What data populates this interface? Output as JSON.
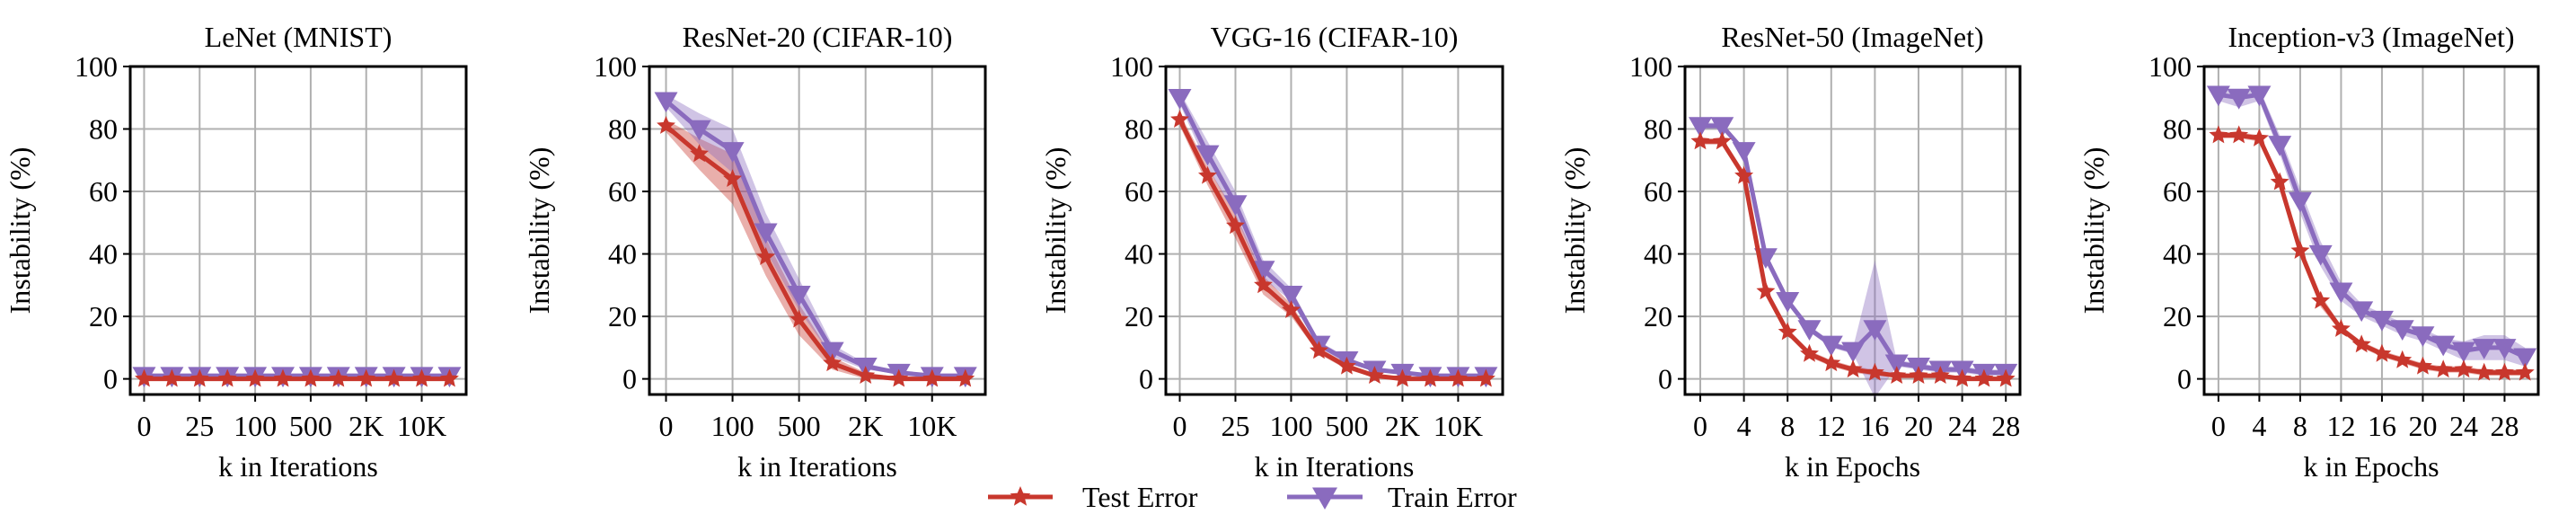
{
  "colors": {
    "test": "#c8372d",
    "train": "#8a6bbe",
    "grid": "#b0b0b0"
  },
  "legend": {
    "position": "bottom-center",
    "items": [
      {
        "label": "Test Error",
        "marker": "star",
        "color": "#c8372d"
      },
      {
        "label": "Train Error",
        "marker": "triangle-down",
        "color": "#8a6bbe"
      }
    ]
  },
  "chart_data": [
    {
      "type": "line",
      "title": "LeNet (MNIST)",
      "xlabel": "k in Iterations",
      "ylabel": "Instability (%)",
      "x_scale": "categorical",
      "xticks": [
        {
          "index": 0,
          "label": "0"
        },
        {
          "index": 2,
          "label": "25"
        },
        {
          "index": 4,
          "label": "100"
        },
        {
          "index": 6,
          "label": "500"
        },
        {
          "index": 8,
          "label": "2K"
        },
        {
          "index": 10,
          "label": "10K"
        }
      ],
      "ylim": [
        -5,
        100
      ],
      "yticks": [
        0,
        20,
        40,
        60,
        80,
        100
      ],
      "grid": true,
      "series": [
        {
          "name": "Test Error",
          "x": [
            0,
            1,
            2,
            3,
            4,
            5,
            6,
            7,
            8,
            9,
            10,
            11
          ],
          "values": [
            0,
            0,
            0,
            0,
            0,
            0,
            0,
            0,
            0,
            0,
            0,
            0
          ],
          "spread": [
            0.5,
            0.5,
            0.5,
            0.5,
            0.5,
            0.5,
            0.5,
            0.5,
            0.5,
            0.5,
            0.5,
            0.5
          ]
        },
        {
          "name": "Train Error",
          "x": [
            0,
            1,
            2,
            3,
            4,
            5,
            6,
            7,
            8,
            9,
            10,
            11
          ],
          "values": [
            1,
            1,
            1,
            1,
            1,
            1,
            1,
            1,
            1,
            1,
            1,
            1
          ],
          "spread": [
            0.5,
            0.5,
            0.5,
            0.5,
            0.5,
            0.5,
            0.5,
            0.5,
            0.5,
            0.5,
            0.5,
            0.5
          ]
        }
      ]
    },
    {
      "type": "line",
      "title": "ResNet-20 (CIFAR-10)",
      "xlabel": "k in Iterations",
      "ylabel": "Instability (%)",
      "x_scale": "categorical",
      "xticks": [
        {
          "index": 0,
          "label": "0"
        },
        {
          "index": 2,
          "label": "100"
        },
        {
          "index": 4,
          "label": "500"
        },
        {
          "index": 6,
          "label": "2K"
        },
        {
          "index": 8,
          "label": "10K"
        }
      ],
      "ylim": [
        -5,
        100
      ],
      "yticks": [
        0,
        20,
        40,
        60,
        80,
        100
      ],
      "grid": true,
      "series": [
        {
          "name": "Test Error",
          "x": [
            0,
            1,
            2,
            3,
            4,
            5,
            6,
            7,
            8,
            9
          ],
          "values": [
            81,
            72,
            64,
            39,
            19,
            5,
            1,
            0,
            0,
            0
          ],
          "spread": [
            2,
            5,
            8,
            6,
            5,
            2,
            1,
            0.5,
            0.5,
            0.5
          ]
        },
        {
          "name": "Train Error",
          "x": [
            0,
            1,
            2,
            3,
            4,
            5,
            6,
            7,
            8,
            9
          ],
          "values": [
            89,
            80,
            73,
            47,
            27,
            9,
            4,
            2,
            1,
            1
          ],
          "spread": [
            2,
            5,
            7,
            6,
            5,
            2,
            1,
            0.5,
            0.5,
            0.5
          ]
        }
      ]
    },
    {
      "type": "line",
      "title": "VGG-16 (CIFAR-10)",
      "xlabel": "k in Iterations",
      "ylabel": "Instability (%)",
      "x_scale": "categorical",
      "xticks": [
        {
          "index": 0,
          "label": "0"
        },
        {
          "index": 2,
          "label": "25"
        },
        {
          "index": 4,
          "label": "100"
        },
        {
          "index": 6,
          "label": "500"
        },
        {
          "index": 8,
          "label": "2K"
        },
        {
          "index": 10,
          "label": "10K"
        }
      ],
      "ylim": [
        -5,
        100
      ],
      "yticks": [
        0,
        20,
        40,
        60,
        80,
        100
      ],
      "grid": true,
      "series": [
        {
          "name": "Test Error",
          "x": [
            0,
            1,
            2,
            3,
            4,
            5,
            6,
            7,
            8,
            9,
            10,
            11
          ],
          "values": [
            83,
            65,
            49,
            30,
            22,
            9,
            4,
            1,
            0,
            0,
            0,
            0
          ],
          "spread": [
            2,
            3,
            4,
            3,
            2,
            1,
            1,
            0.5,
            0.5,
            0.5,
            0.5,
            0.5
          ]
        },
        {
          "name": "Train Error",
          "x": [
            0,
            1,
            2,
            3,
            4,
            5,
            6,
            7,
            8,
            9,
            10,
            11
          ],
          "values": [
            90,
            72,
            56,
            35,
            27,
            11,
            6,
            3,
            2,
            1,
            1,
            1
          ],
          "spread": [
            2,
            4,
            4,
            3,
            2,
            1,
            1,
            0.5,
            0.5,
            0.5,
            0.5,
            0.5
          ]
        }
      ]
    },
    {
      "type": "line",
      "title": "ResNet-50 (ImageNet)",
      "xlabel": "k in Epochs",
      "ylabel": "Instability (%)",
      "x_scale": "linear",
      "xlim": [
        -1.4,
        29.3
      ],
      "xticks": [
        {
          "index": 0,
          "label": "0"
        },
        {
          "index": 4,
          "label": "4"
        },
        {
          "index": 8,
          "label": "8"
        },
        {
          "index": 12,
          "label": "12"
        },
        {
          "index": 16,
          "label": "16"
        },
        {
          "index": 20,
          "label": "20"
        },
        {
          "index": 24,
          "label": "24"
        },
        {
          "index": 28,
          "label": "28"
        }
      ],
      "ylim": [
        -5,
        100
      ],
      "yticks": [
        0,
        20,
        40,
        60,
        80,
        100
      ],
      "grid": true,
      "series": [
        {
          "name": "Test Error",
          "x": [
            0,
            2,
            4,
            6,
            8,
            10,
            12,
            14,
            16,
            18,
            20,
            22,
            24,
            26,
            28
          ],
          "values": [
            76,
            76,
            65,
            28,
            15,
            8,
            5,
            3,
            2,
            1,
            1,
            1,
            0,
            0,
            0
          ],
          "spread": [
            1,
            1,
            1,
            1,
            1,
            1,
            1,
            1,
            1,
            0.5,
            0.5,
            0.5,
            0.5,
            0.5,
            0.5
          ]
        },
        {
          "name": "Train Error",
          "x": [
            0,
            2,
            4,
            6,
            8,
            10,
            12,
            14,
            16,
            18,
            20,
            22,
            24,
            26,
            28
          ],
          "values": [
            81,
            81,
            73,
            39,
            25,
            16,
            11,
            9,
            16,
            5,
            4,
            3,
            3,
            2,
            2
          ],
          "spread": [
            1,
            1,
            1,
            1,
            1,
            1,
            1,
            1,
            22,
            1,
            1,
            1,
            1,
            1,
            1
          ]
        }
      ]
    },
    {
      "type": "line",
      "title": "Inception-v3 (ImageNet)",
      "xlabel": "k in Epochs",
      "ylabel": "Instability (%)",
      "x_scale": "linear",
      "xlim": [
        -1.4,
        31.3
      ],
      "xticks": [
        {
          "index": 0,
          "label": "0"
        },
        {
          "index": 4,
          "label": "4"
        },
        {
          "index": 8,
          "label": "8"
        },
        {
          "index": 12,
          "label": "12"
        },
        {
          "index": 16,
          "label": "16"
        },
        {
          "index": 20,
          "label": "20"
        },
        {
          "index": 24,
          "label": "24"
        },
        {
          "index": 28,
          "label": "28"
        }
      ],
      "ylim": [
        -5,
        100
      ],
      "yticks": [
        0,
        20,
        40,
        60,
        80,
        100
      ],
      "grid": true,
      "series": [
        {
          "name": "Test Error",
          "x": [
            0,
            2,
            4,
            6,
            8,
            10,
            12,
            14,
            16,
            18,
            20,
            22,
            24,
            26,
            28,
            30
          ],
          "values": [
            78,
            78,
            77,
            63,
            41,
            25,
            16,
            11,
            8,
            6,
            4,
            3,
            3,
            2,
            2,
            2
          ],
          "spread": [
            1,
            1,
            1,
            2,
            2,
            2,
            1,
            1,
            1,
            1,
            1,
            1,
            1,
            1,
            1,
            1
          ]
        },
        {
          "name": "Train Error",
          "x": [
            0,
            2,
            4,
            6,
            8,
            10,
            12,
            14,
            16,
            18,
            20,
            22,
            24,
            26,
            28,
            30
          ],
          "values": [
            91,
            90,
            91,
            75,
            57,
            40,
            28,
            22,
            19,
            16,
            14,
            11,
            9,
            10,
            10,
            7
          ],
          "spread": [
            2,
            3,
            2,
            3,
            4,
            4,
            3,
            2,
            2,
            2,
            2,
            2,
            3,
            4,
            4,
            3
          ]
        }
      ]
    }
  ]
}
